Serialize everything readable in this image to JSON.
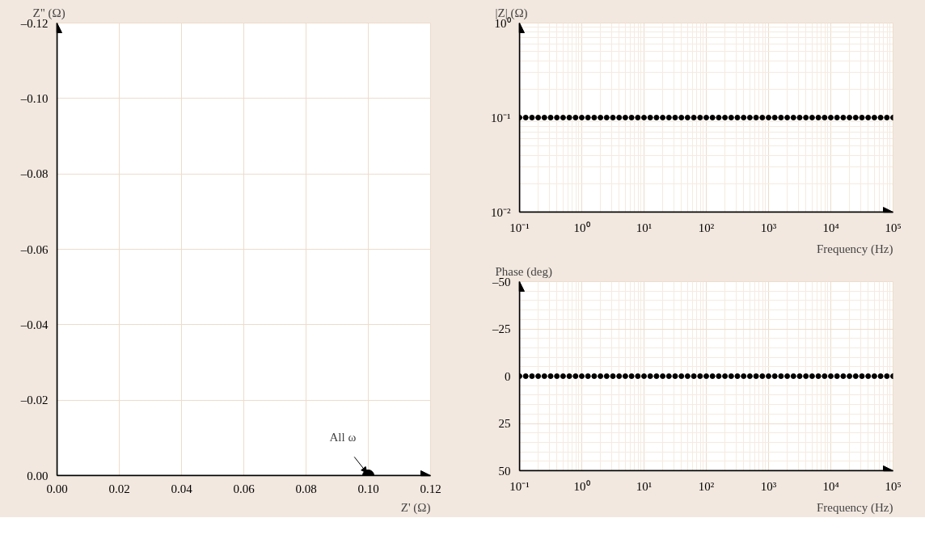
{
  "chart_data": [
    {
      "type": "scatter",
      "xlabel": "Z' (Ω)",
      "ylabel": "Z\" (Ω)",
      "xlim": [
        0,
        0.12
      ],
      "ylim": [
        0,
        -0.12
      ],
      "xticks": [
        {
          "value": 0,
          "label": "0.00"
        },
        {
          "value": 0.02,
          "label": "0.02"
        },
        {
          "value": 0.04,
          "label": "0.04"
        },
        {
          "value": 0.06,
          "label": "0.06"
        },
        {
          "value": 0.08,
          "label": "0.08"
        },
        {
          "value": 0.1,
          "label": "0.10"
        },
        {
          "value": 0.12,
          "label": "0.12"
        }
      ],
      "yticks": [
        {
          "value": 0,
          "label": "0.00"
        },
        {
          "value": -0.02,
          "label": "–0.02"
        },
        {
          "value": -0.04,
          "label": "–0.04"
        },
        {
          "value": -0.06,
          "label": "–0.06"
        },
        {
          "value": -0.08,
          "label": "–0.08"
        },
        {
          "value": -0.1,
          "label": "–0.10"
        },
        {
          "value": -0.12,
          "label": "–0.12"
        }
      ],
      "series": [
        {
          "color": "#000000",
          "x": [
            0.1
          ],
          "values": [
            0
          ]
        }
      ],
      "annotations": [
        {
          "text": "All ω",
          "x": 0.1,
          "y": 0
        }
      ],
      "grid": true,
      "marker": "circle"
    },
    {
      "type": "scatter",
      "xlabel": "Frequency (Hz)",
      "ylabel": "|Z| (Ω)",
      "log": "xy",
      "xlim": [
        0.1,
        100000
      ],
      "ylim": [
        0.01,
        1
      ],
      "xticks": [
        {
          "value": 0.1,
          "label": "10⁻¹"
        },
        {
          "value": 1,
          "label": "10⁰"
        },
        {
          "value": 10,
          "label": "10¹"
        },
        {
          "value": 100,
          "label": "10²"
        },
        {
          "value": 1000,
          "label": "10³"
        },
        {
          "value": 10000,
          "label": "10⁴"
        },
        {
          "value": 100000,
          "label": "10⁵"
        }
      ],
      "yticks": [
        {
          "value": 0.01,
          "label": "10⁻²"
        },
        {
          "value": 0.1,
          "label": "10⁻¹"
        },
        {
          "value": 1,
          "label": "10⁰"
        }
      ],
      "series": [
        {
          "color": "#000000",
          "x": [
            0.1,
            0.1259,
            0.1585,
            0.1995,
            0.2512,
            0.3162,
            0.3981,
            0.5012,
            0.631,
            0.7943,
            1,
            1.259,
            1.585,
            1.995,
            2.512,
            3.162,
            3.981,
            5.012,
            6.31,
            7.943,
            10,
            12.59,
            15.85,
            19.95,
            25.12,
            31.62,
            39.81,
            50.12,
            63.1,
            79.43,
            100,
            125.9,
            158.5,
            199.5,
            251.2,
            316.2,
            398.1,
            501.2,
            631,
            794.3,
            1000,
            1259,
            1585,
            1995,
            2512,
            3162,
            3981,
            5012,
            6310,
            7943,
            10000,
            12590,
            15850,
            19950,
            25120,
            31620,
            39810,
            50120,
            63100,
            79430,
            100000
          ],
          "values": [
            0.1,
            0.1,
            0.1,
            0.1,
            0.1,
            0.1,
            0.1,
            0.1,
            0.1,
            0.1,
            0.1,
            0.1,
            0.1,
            0.1,
            0.1,
            0.1,
            0.1,
            0.1,
            0.1,
            0.1,
            0.1,
            0.1,
            0.1,
            0.1,
            0.1,
            0.1,
            0.1,
            0.1,
            0.1,
            0.1,
            0.1,
            0.1,
            0.1,
            0.1,
            0.1,
            0.1,
            0.1,
            0.1,
            0.1,
            0.1,
            0.1,
            0.1,
            0.1,
            0.1,
            0.1,
            0.1,
            0.1,
            0.1,
            0.1,
            0.1,
            0.1,
            0.1,
            0.1,
            0.1,
            0.1,
            0.1,
            0.1,
            0.1,
            0.1,
            0.1,
            0.1
          ]
        }
      ],
      "grid": true,
      "marker": "circle"
    },
    {
      "type": "scatter",
      "xlabel": "Frequency (Hz)",
      "ylabel": "Phase (deg)",
      "log": "x",
      "xlim": [
        0.1,
        100000
      ],
      "ylim": [
        50,
        -50
      ],
      "xticks": [
        {
          "value": 0.1,
          "label": "10⁻¹"
        },
        {
          "value": 1,
          "label": "10⁰"
        },
        {
          "value": 10,
          "label": "10¹"
        },
        {
          "value": 100,
          "label": "10²"
        },
        {
          "value": 1000,
          "label": "10³"
        },
        {
          "value": 10000,
          "label": "10⁴"
        },
        {
          "value": 100000,
          "label": "10⁵"
        }
      ],
      "yticks": [
        50,
        25,
        0,
        {
          "value": -25,
          "label": "–25"
        },
        {
          "value": -50,
          "label": "–50"
        }
      ],
      "series": [
        {
          "color": "#000000",
          "x": [
            0.1,
            0.1259,
            0.1585,
            0.1995,
            0.2512,
            0.3162,
            0.3981,
            0.5012,
            0.631,
            0.7943,
            1,
            1.259,
            1.585,
            1.995,
            2.512,
            3.162,
            3.981,
            5.012,
            6.31,
            7.943,
            10,
            12.59,
            15.85,
            19.95,
            25.12,
            31.62,
            39.81,
            50.12,
            63.1,
            79.43,
            100,
            125.9,
            158.5,
            199.5,
            251.2,
            316.2,
            398.1,
            501.2,
            631,
            794.3,
            1000,
            1259,
            1585,
            1995,
            2512,
            3162,
            3981,
            5012,
            6310,
            7943,
            10000,
            12590,
            15850,
            19950,
            25120,
            31620,
            39810,
            50120,
            63100,
            79430,
            100000
          ],
          "values": [
            0,
            0,
            0,
            0,
            0,
            0,
            0,
            0,
            0,
            0,
            0,
            0,
            0,
            0,
            0,
            0,
            0,
            0,
            0,
            0,
            0,
            0,
            0,
            0,
            0,
            0,
            0,
            0,
            0,
            0,
            0,
            0,
            0,
            0,
            0,
            0,
            0,
            0,
            0,
            0,
            0,
            0,
            0,
            0,
            0,
            0,
            0,
            0,
            0,
            0,
            0,
            0,
            0,
            0,
            0,
            0,
            0,
            0,
            0,
            0,
            0
          ]
        }
      ],
      "grid": true,
      "marker": "circle"
    }
  ]
}
